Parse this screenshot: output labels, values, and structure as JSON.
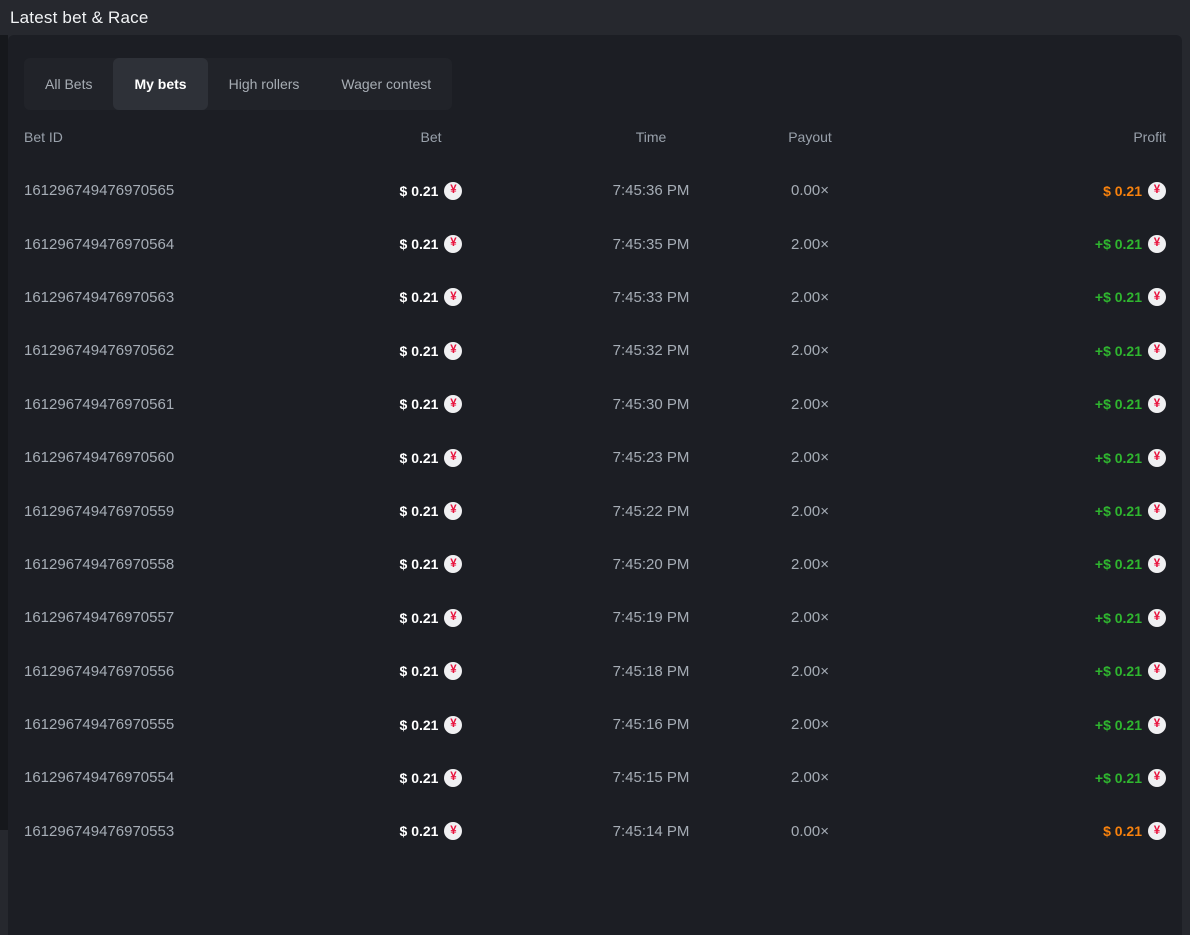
{
  "page": {
    "title": "Latest bet & Race"
  },
  "colors": {
    "outer_background": "#26282e",
    "panel_background": "#1c1e24",
    "profit_win": "#2fb62f",
    "profit_loss": "#f8820d",
    "coin_background": "#f0f0f2",
    "coin_symbol_color": "#e9113c"
  },
  "tabs": [
    {
      "label": "All Bets",
      "active": false
    },
    {
      "label": "My bets",
      "active": true
    },
    {
      "label": "High rollers",
      "active": false
    },
    {
      "label": "Wager contest",
      "active": false
    }
  ],
  "table": {
    "headers": [
      "Bet ID",
      "Bet",
      "Time",
      "Payout",
      "Profit"
    ],
    "currency_symbol": "¥",
    "currency_icon": "jpy-coin",
    "rows": [
      {
        "bet_id": "161296749476970565",
        "bet": "$ 0.21",
        "time": "7:45:36 PM",
        "payout": "0.00×",
        "profit": "$ 0.21",
        "profit_type": "loss"
      },
      {
        "bet_id": "161296749476970564",
        "bet": "$ 0.21",
        "time": "7:45:35 PM",
        "payout": "2.00×",
        "profit": "+$ 0.21",
        "profit_type": "win"
      },
      {
        "bet_id": "161296749476970563",
        "bet": "$ 0.21",
        "time": "7:45:33 PM",
        "payout": "2.00×",
        "profit": "+$ 0.21",
        "profit_type": "win"
      },
      {
        "bet_id": "161296749476970562",
        "bet": "$ 0.21",
        "time": "7:45:32 PM",
        "payout": "2.00×",
        "profit": "+$ 0.21",
        "profit_type": "win"
      },
      {
        "bet_id": "161296749476970561",
        "bet": "$ 0.21",
        "time": "7:45:30 PM",
        "payout": "2.00×",
        "profit": "+$ 0.21",
        "profit_type": "win"
      },
      {
        "bet_id": "161296749476970560",
        "bet": "$ 0.21",
        "time": "7:45:23 PM",
        "payout": "2.00×",
        "profit": "+$ 0.21",
        "profit_type": "win"
      },
      {
        "bet_id": "161296749476970559",
        "bet": "$ 0.21",
        "time": "7:45:22 PM",
        "payout": "2.00×",
        "profit": "+$ 0.21",
        "profit_type": "win"
      },
      {
        "bet_id": "161296749476970558",
        "bet": "$ 0.21",
        "time": "7:45:20 PM",
        "payout": "2.00×",
        "profit": "+$ 0.21",
        "profit_type": "win"
      },
      {
        "bet_id": "161296749476970557",
        "bet": "$ 0.21",
        "time": "7:45:19 PM",
        "payout": "2.00×",
        "profit": "+$ 0.21",
        "profit_type": "win"
      },
      {
        "bet_id": "161296749476970556",
        "bet": "$ 0.21",
        "time": "7:45:18 PM",
        "payout": "2.00×",
        "profit": "+$ 0.21",
        "profit_type": "win"
      },
      {
        "bet_id": "161296749476970555",
        "bet": "$ 0.21",
        "time": "7:45:16 PM",
        "payout": "2.00×",
        "profit": "+$ 0.21",
        "profit_type": "win"
      },
      {
        "bet_id": "161296749476970554",
        "bet": "$ 0.21",
        "time": "7:45:15 PM",
        "payout": "2.00×",
        "profit": "+$ 0.21",
        "profit_type": "win"
      },
      {
        "bet_id": "161296749476970553",
        "bet": "$ 0.21",
        "time": "7:45:14 PM",
        "payout": "0.00×",
        "profit": "$ 0.21",
        "profit_type": "loss"
      }
    ]
  }
}
